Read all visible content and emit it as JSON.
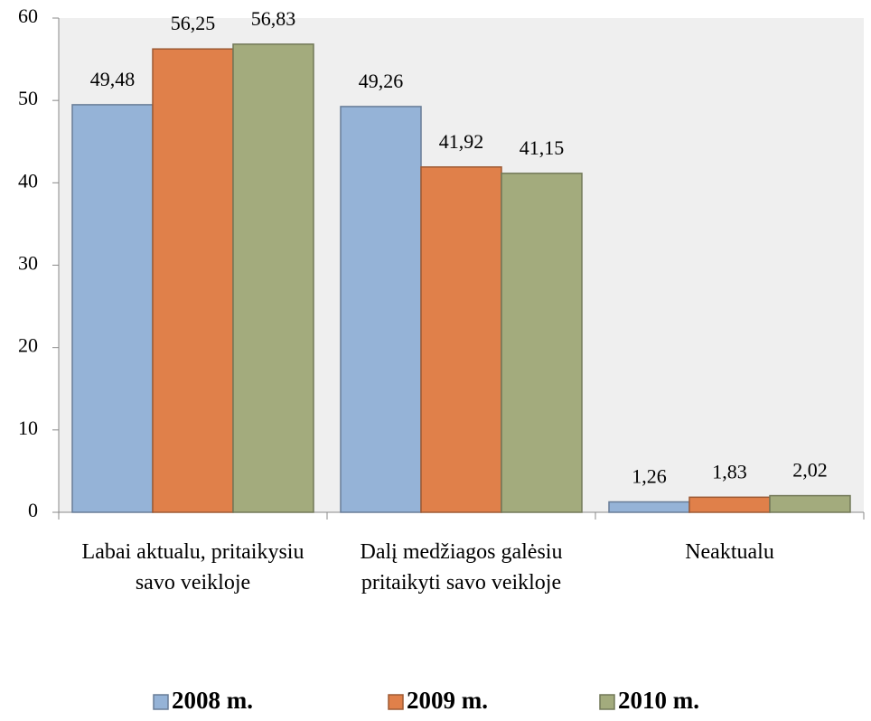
{
  "chart_data": {
    "type": "bar",
    "categories": [
      "Labai aktualu, pritaikysiu savo veikloje",
      "Dalį medžiagos galėsiu pritaikyti savo veikloje",
      "Neaktualu"
    ],
    "series": [
      {
        "name": "2008 m.",
        "color": "#95b3d7",
        "values": [
          49.48,
          49.26,
          1.26
        ],
        "value_labels": [
          "49,48",
          "49,26",
          "1,26"
        ]
      },
      {
        "name": "2009 m.",
        "color": "#e0804a",
        "values": [
          56.25,
          41.92,
          1.83
        ],
        "value_labels": [
          "56,25",
          "41,92",
          "1,83"
        ]
      },
      {
        "name": "2010 m.",
        "color": "#a3ab7d",
        "values": [
          56.83,
          41.15,
          2.02
        ],
        "value_labels": [
          "56,83",
          "41,15",
          "2,02"
        ]
      }
    ],
    "ylim": [
      0,
      60
    ],
    "yticks": [
      0,
      10,
      20,
      30,
      40,
      50,
      60
    ],
    "grid": false,
    "legend": "bottom"
  }
}
